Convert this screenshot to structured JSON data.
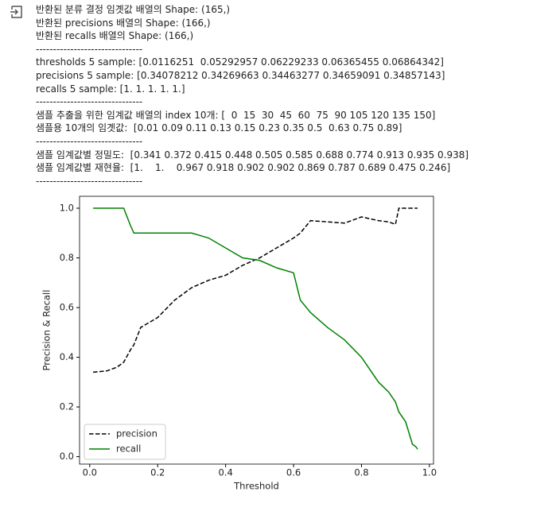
{
  "output_lines": [
    "반환된 분류 결정 임곗값 배열의 Shape: (165,)",
    "반환된 precisions 배열의 Shape: (166,)",
    "반환된 recalls 배열의 Shape: (166,)",
    "-------------------------------",
    "thresholds 5 sample: [0.0116251  0.05292957 0.06229233 0.06365455 0.06864342]",
    "precisions 5 sample: [0.34078212 0.34269663 0.34463277 0.34659091 0.34857143]",
    "recalls 5 sample: [1. 1. 1. 1. 1.]",
    "-------------------------------",
    "샘플 추출을 위한 임계값 배열의 index 10개: [  0  15  30  45  60  75  90 105 120 135 150]",
    "샘플용 10개의 임곗값:  [0.01 0.09 0.11 0.13 0.15 0.23 0.35 0.5  0.63 0.75 0.89]",
    "-------------------------------",
    "샘플 임계값별 정밀도:  [0.341 0.372 0.415 0.448 0.505 0.585 0.688 0.774 0.913 0.935 0.938]",
    "샘플 임계값별 재현율:  [1.    1.    0.967 0.918 0.902 0.902 0.869 0.787 0.689 0.475 0.246]",
    "-------------------------------"
  ],
  "chart_data": {
    "type": "line",
    "x_label": "Threshold",
    "y_label": "Precision & Recall",
    "x": [
      0.01,
      0.05,
      0.08,
      0.1,
      0.12,
      0.13,
      0.15,
      0.2,
      0.25,
      0.3,
      0.35,
      0.4,
      0.45,
      0.5,
      0.55,
      0.6,
      0.62,
      0.65,
      0.7,
      0.75,
      0.8,
      0.85,
      0.88,
      0.9,
      0.91,
      0.93,
      0.95,
      0.96,
      0.965
    ],
    "series": [
      {
        "name": "precision",
        "color": "#000000",
        "dash": true,
        "values": [
          0.34,
          0.345,
          0.36,
          0.38,
          0.43,
          0.45,
          0.52,
          0.56,
          0.63,
          0.68,
          0.71,
          0.73,
          0.77,
          0.8,
          0.84,
          0.88,
          0.9,
          0.95,
          0.945,
          0.94,
          0.965,
          0.95,
          0.945,
          0.935,
          1.0,
          1.0,
          1.0,
          1.0,
          1.0
        ]
      },
      {
        "name": "recall",
        "color": "#008000",
        "dash": false,
        "values": [
          1.0,
          1.0,
          1.0,
          1.0,
          0.93,
          0.9,
          0.9,
          0.9,
          0.9,
          0.9,
          0.88,
          0.84,
          0.8,
          0.79,
          0.76,
          0.74,
          0.63,
          0.58,
          0.52,
          0.47,
          0.4,
          0.3,
          0.26,
          0.22,
          0.18,
          0.14,
          0.05,
          0.04,
          0.03
        ]
      }
    ],
    "xlim": [
      -0.03,
      1.012
    ],
    "ylim": [
      -0.03,
      1.048
    ],
    "xticks": [
      {
        "value": 0.0,
        "label": "0.0"
      },
      {
        "value": 0.2,
        "label": "0.2"
      },
      {
        "value": 0.4,
        "label": "0.4"
      },
      {
        "value": 0.6,
        "label": "0.6"
      },
      {
        "value": 0.8,
        "label": "0.8"
      },
      {
        "value": 1.0,
        "label": "1.0"
      }
    ],
    "yticks": [
      {
        "value": 0.0,
        "label": "0.0"
      },
      {
        "value": 0.2,
        "label": "0.2"
      },
      {
        "value": 0.4,
        "label": "0.4"
      },
      {
        "value": 0.6,
        "label": "0.6"
      },
      {
        "value": 0.8,
        "label": "0.8"
      },
      {
        "value": 1.0,
        "label": "1.0"
      }
    ],
    "grid": false,
    "legend": "lower left"
  }
}
